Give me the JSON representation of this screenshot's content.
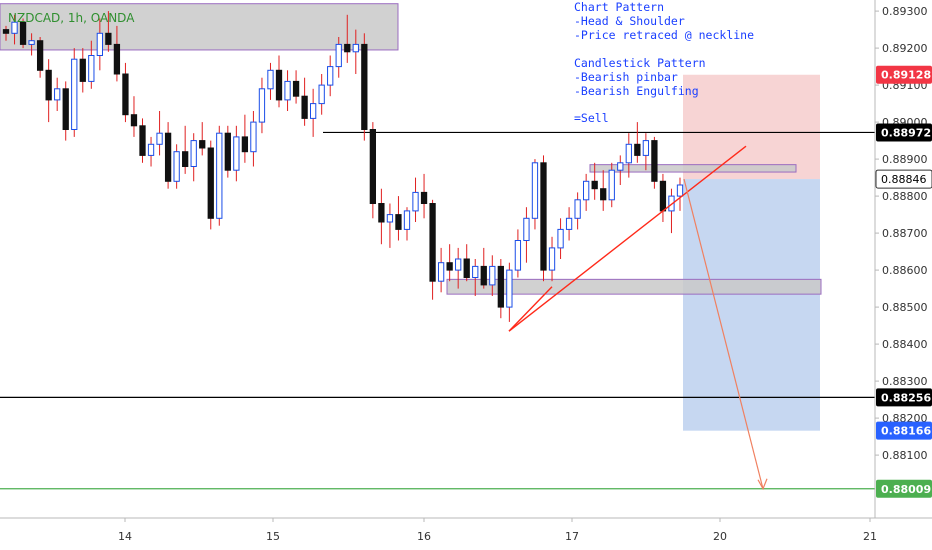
{
  "symbol_label": "NZDCAD, 1h, OANDA",
  "notes": [
    "Chart Pattern",
    "-Head & Shoulder",
    "-Price retraced @ neckline",
    "",
    "Candlestick Pattern",
    "-Bearish pinbar",
    "-Bearish Engulfing",
    "",
    "=Sell"
  ],
  "colors": {
    "bull_body": "#ffffff",
    "bull_border": "#1a4de8",
    "bear_body": "#111111",
    "wick": "#e02020",
    "stop_zone": "#f4c6c6",
    "target_zone": "#bcd0ef",
    "supply_zone": "#c9c9c9",
    "zone_border": "#9a6cc0",
    "trendline": "#ff2a1a",
    "projection": "#f08060",
    "take_profit_line": "#4caf50",
    "sl_tag": "#f23645",
    "tp_tag": "#2962ff",
    "level_tag": "#000000",
    "current_tag": "#ffffff"
  },
  "chart_data": {
    "type": "candlestick",
    "x_ticks": [
      "14",
      "15",
      "16",
      "17",
      "20",
      "21"
    ],
    "y_ticks": [
      "0.89300",
      "0.89200",
      "0.89100",
      "0.89000",
      "0.88900",
      "0.88800",
      "0.88700",
      "0.88600",
      "0.88500",
      "0.88400",
      "0.88300",
      "0.88200",
      "0.88100"
    ],
    "ylim": [
      0.8793,
      0.8933
    ],
    "price_tags": [
      {
        "label": "0.89128",
        "price": 0.89128,
        "kind": "stop"
      },
      {
        "label": "0.88972",
        "price": 0.88972,
        "kind": "level"
      },
      {
        "label": "0.88846",
        "price": 0.88846,
        "kind": "current"
      },
      {
        "label": "0.88256",
        "price": 0.88256,
        "kind": "level"
      },
      {
        "label": "0.88166",
        "price": 0.88166,
        "kind": "target"
      },
      {
        "label": "0.88009",
        "price": 0.88009,
        "kind": "takeprofit"
      }
    ],
    "horizontal_levels": [
      0.88972,
      0.88256,
      0.88009
    ],
    "position": {
      "entry": 0.88846,
      "stop": 0.89128,
      "target": 0.88166
    },
    "zones": [
      {
        "top": 0.8932,
        "bottom": 0.89195
      },
      {
        "top": 0.88885,
        "bottom": 0.88865
      },
      {
        "top": 0.88575,
        "bottom": 0.88535
      }
    ],
    "trendline": [
      [
        0.88435,
        0.0
      ],
      [
        0.88935,
        1.0
      ]
    ],
    "projection_target": 0.88009,
    "candles": [
      [
        0.8925,
        0.8926,
        0.8922,
        0.8924
      ],
      [
        0.8924,
        0.8929,
        0.8921,
        0.8927
      ],
      [
        0.8927,
        0.8928,
        0.892,
        0.8921
      ],
      [
        0.8921,
        0.8924,
        0.8918,
        0.8922
      ],
      [
        0.8922,
        0.8923,
        0.8912,
        0.8914
      ],
      [
        0.8914,
        0.8917,
        0.89,
        0.8906
      ],
      [
        0.8906,
        0.8912,
        0.8903,
        0.8909
      ],
      [
        0.8909,
        0.8911,
        0.8895,
        0.8898
      ],
      [
        0.8898,
        0.892,
        0.8896,
        0.8917
      ],
      [
        0.8917,
        0.892,
        0.8908,
        0.8911
      ],
      [
        0.8911,
        0.8922,
        0.8909,
        0.8918
      ],
      [
        0.8918,
        0.8928,
        0.8914,
        0.8924
      ],
      [
        0.8924,
        0.893,
        0.8919,
        0.8921
      ],
      [
        0.8921,
        0.8926,
        0.8911,
        0.8913
      ],
      [
        0.8913,
        0.8916,
        0.89,
        0.8902
      ],
      [
        0.8902,
        0.8907,
        0.8896,
        0.8899
      ],
      [
        0.8899,
        0.8901,
        0.8889,
        0.8891
      ],
      [
        0.8891,
        0.8896,
        0.8888,
        0.8894
      ],
      [
        0.8894,
        0.8903,
        0.8891,
        0.8897
      ],
      [
        0.8897,
        0.89,
        0.8882,
        0.8884
      ],
      [
        0.8884,
        0.8894,
        0.8882,
        0.8892
      ],
      [
        0.8892,
        0.8899,
        0.8886,
        0.8888
      ],
      [
        0.8888,
        0.8897,
        0.8884,
        0.8895
      ],
      [
        0.8895,
        0.89,
        0.8891,
        0.8893
      ],
      [
        0.8893,
        0.8895,
        0.8871,
        0.8874
      ],
      [
        0.8874,
        0.8899,
        0.8872,
        0.8897
      ],
      [
        0.8897,
        0.8899,
        0.8885,
        0.8887
      ],
      [
        0.8887,
        0.8899,
        0.8884,
        0.8896
      ],
      [
        0.8896,
        0.8902,
        0.8889,
        0.8892
      ],
      [
        0.8892,
        0.8903,
        0.8888,
        0.89
      ],
      [
        0.89,
        0.8912,
        0.8897,
        0.8909
      ],
      [
        0.8909,
        0.8916,
        0.8906,
        0.8914
      ],
      [
        0.8914,
        0.8918,
        0.8904,
        0.8906
      ],
      [
        0.8906,
        0.8914,
        0.8903,
        0.8911
      ],
      [
        0.8911,
        0.8914,
        0.8905,
        0.8907
      ],
      [
        0.8907,
        0.8912,
        0.8899,
        0.8901
      ],
      [
        0.8901,
        0.8909,
        0.8896,
        0.8905
      ],
      [
        0.8905,
        0.8913,
        0.8902,
        0.891
      ],
      [
        0.891,
        0.8918,
        0.8907,
        0.8915
      ],
      [
        0.8915,
        0.8923,
        0.8912,
        0.8921
      ],
      [
        0.8921,
        0.8929,
        0.8916,
        0.8919
      ],
      [
        0.8919,
        0.8925,
        0.8913,
        0.8921
      ],
      [
        0.8921,
        0.8924,
        0.8895,
        0.8898
      ],
      [
        0.8898,
        0.89,
        0.8874,
        0.8878
      ],
      [
        0.8878,
        0.8882,
        0.8867,
        0.8873
      ],
      [
        0.8873,
        0.8878,
        0.8866,
        0.8875
      ],
      [
        0.8875,
        0.888,
        0.8868,
        0.8871
      ],
      [
        0.8871,
        0.8877,
        0.8868,
        0.8876
      ],
      [
        0.8876,
        0.8885,
        0.8873,
        0.8881
      ],
      [
        0.8881,
        0.8886,
        0.8874,
        0.8878
      ],
      [
        0.8878,
        0.8879,
        0.8852,
        0.8857
      ],
      [
        0.8857,
        0.8866,
        0.8854,
        0.8862
      ],
      [
        0.8862,
        0.8867,
        0.8857,
        0.886
      ],
      [
        0.886,
        0.8866,
        0.8855,
        0.8863
      ],
      [
        0.8863,
        0.8867,
        0.8857,
        0.8858
      ],
      [
        0.8858,
        0.8863,
        0.8853,
        0.8861
      ],
      [
        0.8861,
        0.8866,
        0.8855,
        0.8856
      ],
      [
        0.8856,
        0.8864,
        0.8853,
        0.8861
      ],
      [
        0.8861,
        0.8863,
        0.8847,
        0.885
      ],
      [
        0.885,
        0.8862,
        0.8846,
        0.886
      ],
      [
        0.886,
        0.8871,
        0.8858,
        0.8868
      ],
      [
        0.8868,
        0.8877,
        0.8862,
        0.8874
      ],
      [
        0.8874,
        0.889,
        0.8871,
        0.8889
      ],
      [
        0.8889,
        0.8891,
        0.8857,
        0.886
      ],
      [
        0.886,
        0.8869,
        0.8857,
        0.8866
      ],
      [
        0.8866,
        0.8874,
        0.8863,
        0.8871
      ],
      [
        0.8871,
        0.8877,
        0.8868,
        0.8874
      ],
      [
        0.8874,
        0.8881,
        0.8871,
        0.8879
      ],
      [
        0.8879,
        0.8886,
        0.8876,
        0.8884
      ],
      [
        0.8884,
        0.8889,
        0.8879,
        0.8882
      ],
      [
        0.8882,
        0.8887,
        0.8876,
        0.8879
      ],
      [
        0.8879,
        0.8889,
        0.8877,
        0.8887
      ],
      [
        0.8887,
        0.8891,
        0.8883,
        0.8889
      ],
      [
        0.8889,
        0.8897,
        0.8885,
        0.8894
      ],
      [
        0.8894,
        0.89,
        0.8889,
        0.8891
      ],
      [
        0.8891,
        0.8897,
        0.8887,
        0.8895
      ],
      [
        0.8895,
        0.8896,
        0.8882,
        0.8884
      ],
      [
        0.8884,
        0.8886,
        0.8873,
        0.8876
      ],
      [
        0.8876,
        0.8882,
        0.887,
        0.888
      ],
      [
        0.888,
        0.8885,
        0.8876,
        0.8883
      ]
    ]
  }
}
